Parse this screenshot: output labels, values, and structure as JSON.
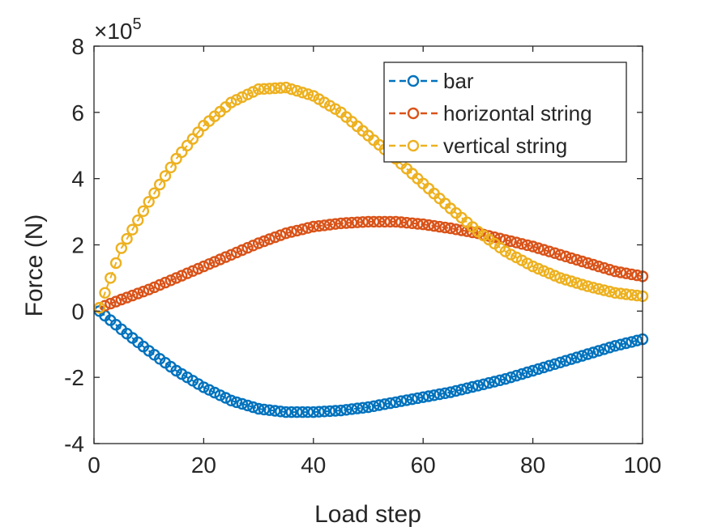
{
  "chart_data": {
    "type": "line",
    "title": "",
    "xlabel": "Load step",
    "ylabel": "Force (N)",
    "xlim": [
      0,
      100
    ],
    "ylim": [
      -4,
      8
    ],
    "y_exponent_label": "×10",
    "y_exponent_power": "5",
    "y_multiplier": 100000,
    "xticks": [
      0,
      20,
      40,
      60,
      80,
      100
    ],
    "xtick_labels": [
      "0",
      "20",
      "40",
      "60",
      "80",
      "100"
    ],
    "yticks": [
      -4,
      -2,
      0,
      2,
      4,
      6,
      8
    ],
    "ytick_labels": [
      "-4",
      "-2",
      "0",
      "2",
      "4",
      "6",
      "8"
    ],
    "grid": false,
    "legend_position": "top-right",
    "marker": "circle",
    "line_style": "dashed",
    "x": [
      1,
      5,
      10,
      15,
      20,
      25,
      30,
      35,
      40,
      45,
      50,
      55,
      60,
      65,
      70,
      75,
      80,
      85,
      90,
      95,
      100
    ],
    "series": [
      {
        "name": "bar",
        "color": "#0072BD",
        "values": [
          0,
          -0.55,
          -1.2,
          -1.8,
          -2.3,
          -2.7,
          -2.95,
          -3.05,
          -3.05,
          -3.0,
          -2.9,
          -2.75,
          -2.6,
          -2.45,
          -2.25,
          -2.05,
          -1.8,
          -1.55,
          -1.3,
          -1.05,
          -0.85
        ]
      },
      {
        "name": "horizontal string",
        "color": "#D95319",
        "values": [
          0.1,
          0.35,
          0.65,
          1.0,
          1.35,
          1.7,
          2.05,
          2.35,
          2.55,
          2.65,
          2.7,
          2.7,
          2.62,
          2.5,
          2.35,
          2.15,
          1.95,
          1.7,
          1.45,
          1.2,
          1.05
        ]
      },
      {
        "name": "vertical string",
        "color": "#EDB120",
        "values": [
          0.1,
          1.9,
          3.3,
          4.6,
          5.6,
          6.3,
          6.7,
          6.75,
          6.5,
          6.0,
          5.3,
          4.6,
          3.85,
          3.1,
          2.4,
          1.8,
          1.35,
          1.0,
          0.75,
          0.55,
          0.45
        ]
      }
    ]
  }
}
